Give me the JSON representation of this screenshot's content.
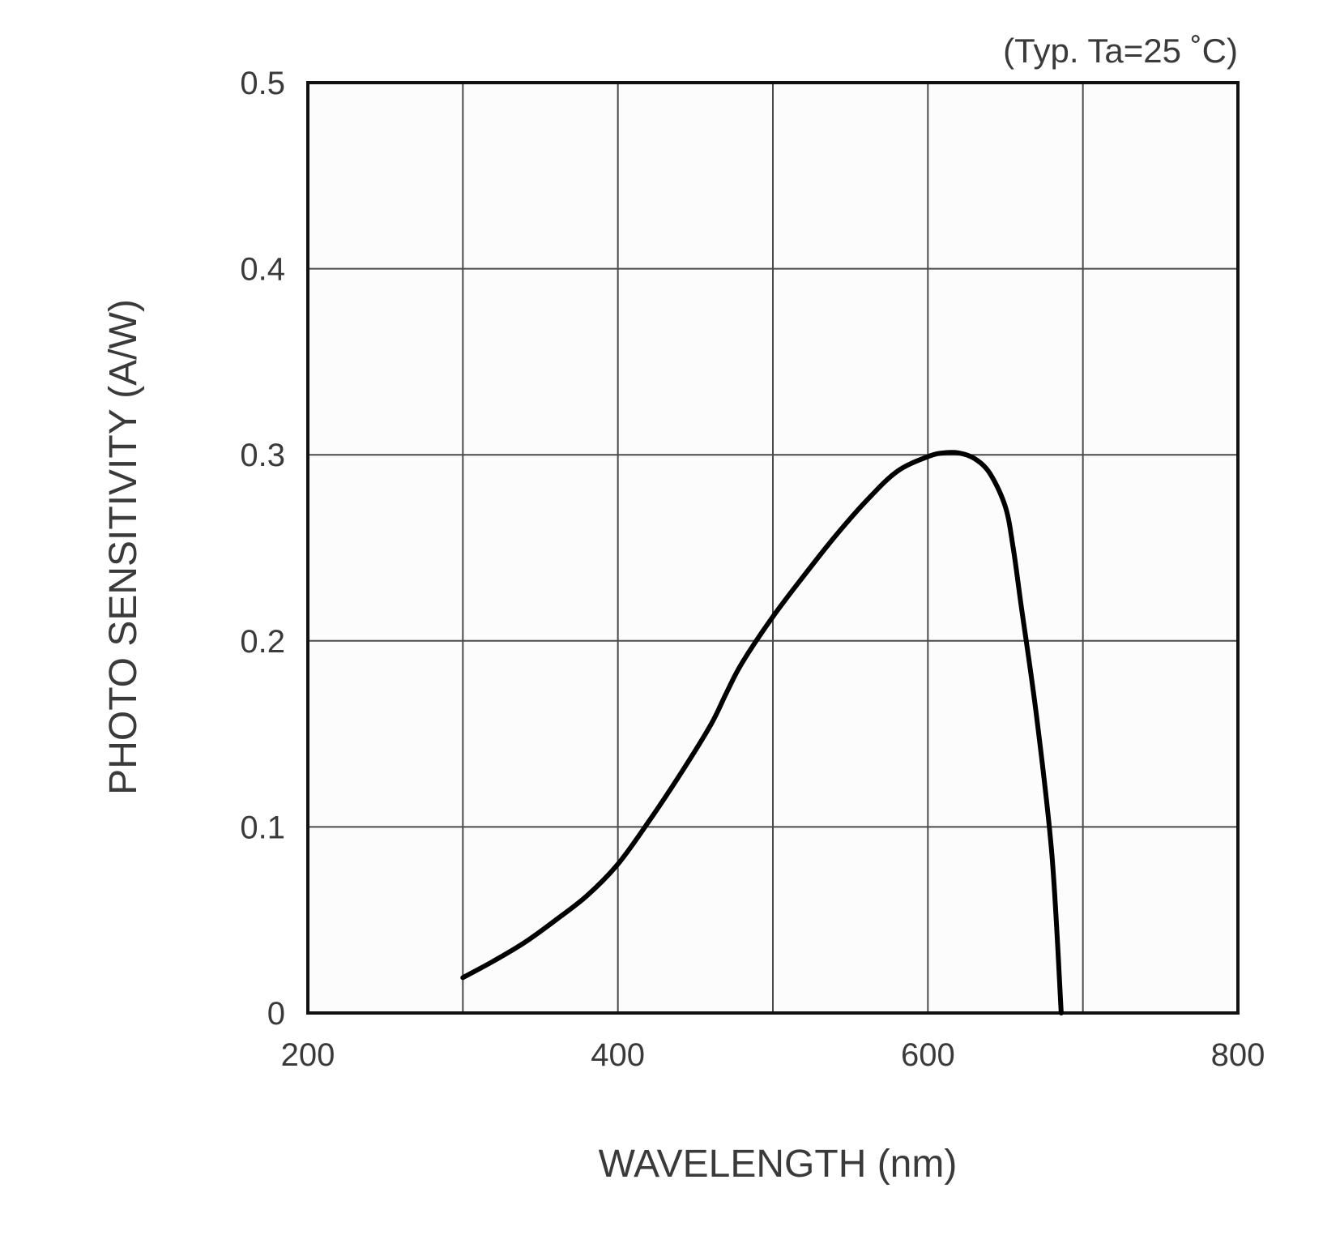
{
  "chart_data": {
    "type": "line",
    "annotation": "(Typ. Ta=25 ˚C)",
    "xlabel": "WAVELENGTH (nm)",
    "ylabel": "PHOTO SENSITIVITY (A/W)",
    "xlim": [
      200,
      800
    ],
    "ylim": [
      0,
      0.5
    ],
    "x_ticks": [
      200,
      400,
      600,
      800
    ],
    "x_tick_labels": [
      "200",
      "400",
      "600",
      "800"
    ],
    "x_gridlines": [
      300,
      400,
      500,
      600,
      700
    ],
    "y_ticks": [
      0,
      0.1,
      0.2,
      0.3,
      0.4,
      0.5
    ],
    "y_tick_labels": [
      "0",
      "0.1",
      "0.2",
      "0.3",
      "0.4",
      "0.5"
    ],
    "grid": true,
    "series": [
      {
        "x": [
          300,
          320,
          340,
          360,
          380,
          400,
          420,
          440,
          460,
          470,
          480,
          500,
          520,
          540,
          560,
          580,
          600,
          610,
          620,
          630,
          640,
          650,
          655,
          660,
          670,
          680,
          686
        ],
        "y": [
          0.019,
          0.028,
          0.038,
          0.05,
          0.063,
          0.08,
          0.103,
          0.128,
          0.155,
          0.172,
          0.188,
          0.213,
          0.235,
          0.256,
          0.275,
          0.291,
          0.299,
          0.301,
          0.301,
          0.298,
          0.29,
          0.272,
          0.25,
          0.22,
          0.16,
          0.085,
          0.0
        ]
      }
    ],
    "colors": {
      "curve": "#000000",
      "grid": "#4a4a4a",
      "frame": "#111111",
      "text": "#3a3a3a"
    }
  }
}
